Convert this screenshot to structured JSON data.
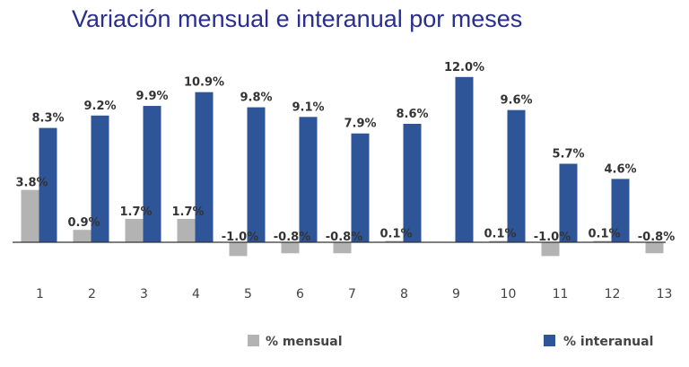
{
  "chart_data": {
    "type": "bar",
    "title": "Variación mensual e interanual por meses",
    "xlabel": "",
    "ylabel": "",
    "categories": [
      "1",
      "2",
      "3",
      "4",
      "5",
      "6",
      "7",
      "8",
      "9",
      "10",
      "11",
      "12",
      "13"
    ],
    "series": [
      {
        "name": "% mensual",
        "color": "#b3b3b3",
        "values": [
          3.8,
          0.9,
          1.7,
          1.7,
          -1.0,
          -0.8,
          -0.8,
          0.1,
          0.0,
          0.1,
          -1.0,
          0.1,
          -0.8
        ],
        "labels": [
          "3.8%",
          "0.9%",
          "1.7%",
          "1.7%",
          "-1.0%",
          "-0.8%",
          "-0.8%",
          "0.1%",
          "",
          "0.1%",
          "-1.0%",
          "0.1%",
          "-0.8%"
        ]
      },
      {
        "name": "% interanual",
        "color": "#2e5597",
        "values": [
          8.3,
          9.2,
          9.9,
          10.9,
          9.8,
          9.1,
          7.9,
          8.6,
          12.0,
          9.6,
          5.7,
          4.6,
          null
        ],
        "labels": [
          "8.3%",
          "9.2%",
          "9.9%",
          "10.9%",
          "9.8%",
          "9.1%",
          "7.9%",
          "8.6%",
          "12.0%",
          "9.6%",
          "5.7%",
          "4.6%",
          ""
        ]
      }
    ],
    "ylim": [
      -1.2,
      13.0
    ],
    "grid": false,
    "legend_position": "bottom"
  }
}
